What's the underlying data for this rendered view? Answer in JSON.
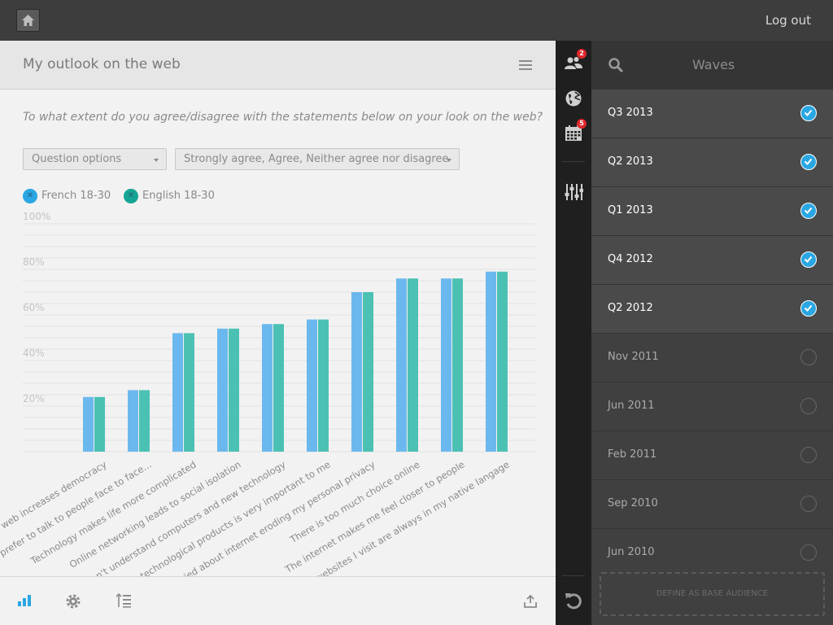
{
  "topbar": {
    "logout_label": "Log out"
  },
  "panel": {
    "title": "My outlook on the web",
    "question": "To what extent do you agree/disagree with the statements below on your look on the web?",
    "question_options": "Question options",
    "answer_filter": "Strongly agree, Agree, Neither agree nor disagree"
  },
  "legend": [
    {
      "name": "French 18-30",
      "color": "#6bb8ee"
    },
    {
      "name": "English 18-30",
      "color": "#4bc1b4"
    }
  ],
  "chart_data": {
    "type": "bar",
    "categories": [
      "The web increases democracy",
      "I prefer to talk to people face to face...",
      "Technology makes life more complicated",
      "Online networking leads to social isolation",
      "I don't understand computers and new technology",
      "Having technological products is very important to me",
      "I am worried about internet eroding my personal privacy",
      "There is too much choice online",
      "The internet makes me feel closer to people",
      "The websites I visit are always in my native langage"
    ],
    "series": [
      {
        "name": "French 18-30",
        "values": [
          24,
          27,
          52,
          54,
          56,
          58,
          70,
          76,
          76,
          79
        ]
      },
      {
        "name": "English 18-30",
        "values": [
          24,
          27,
          52,
          54,
          56,
          58,
          70,
          76,
          76,
          79
        ]
      }
    ],
    "yticks": [
      "20%",
      "40%",
      "60%",
      "80%",
      "100%"
    ],
    "ylim": [
      0,
      100
    ],
    "grid": true,
    "colors": {
      "series1": "#6bb8ee",
      "series2": "#4bc1b4",
      "grid": "#e2e2e2"
    }
  },
  "rail": {
    "audience_badge": "2",
    "calendar_badge": "5"
  },
  "waves": {
    "title": "Waves",
    "items": [
      {
        "label": "Q3 2013",
        "selected": true
      },
      {
        "label": "Q2 2013",
        "selected": true
      },
      {
        "label": "Q1 2013",
        "selected": true
      },
      {
        "label": "Q4 2012",
        "selected": true
      },
      {
        "label": "Q2 2012",
        "selected": true
      },
      {
        "label": "Nov 2011",
        "selected": false
      },
      {
        "label": "Jun 2011",
        "selected": false
      },
      {
        "label": "Feb 2011",
        "selected": false
      },
      {
        "label": "Sep 2010",
        "selected": false
      },
      {
        "label": "Jun 2010",
        "selected": false
      }
    ],
    "base_audience_label": "DEFINE AS BASE AUDIENCE"
  },
  "icons": {
    "home": "home-icon",
    "menu": "hamburger-icon",
    "search": "search-icon",
    "audience": "people-icon",
    "globe": "globe-icon",
    "calendar": "calendar-icon",
    "sliders": "sliders-icon",
    "undo": "undo-icon",
    "chart": "bar-chart-icon",
    "settings": "gear-icon",
    "sort": "sort-list-icon",
    "export": "upload-icon"
  }
}
